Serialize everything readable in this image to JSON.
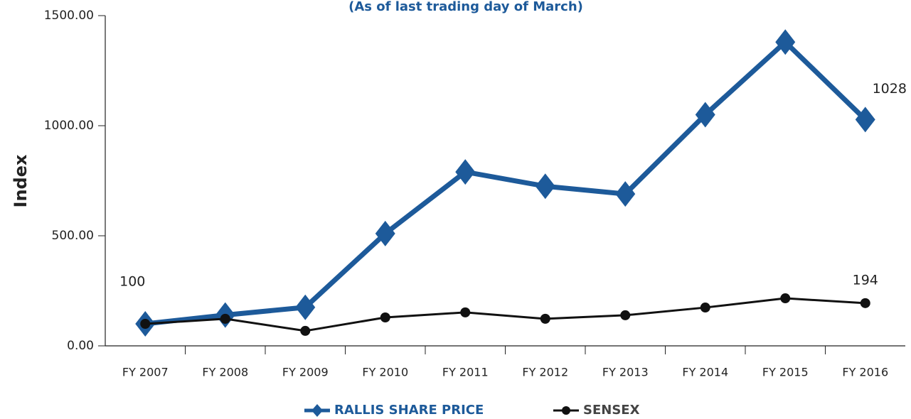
{
  "chart_data": {
    "type": "line",
    "subtitle": "(As of last trading day of March)",
    "y_label": "Index",
    "categories": [
      "FY 2007",
      "FY 2008",
      "FY 2009",
      "FY 2010",
      "FY 2011",
      "FY 2012",
      "FY 2013",
      "FY 2014",
      "FY 2015",
      "FY 2016"
    ],
    "series": [
      {
        "name": "RALLIS SHARE PRICE",
        "color": "#1d5a9a",
        "values": [
          100,
          140,
          175,
          510,
          790,
          725,
          690,
          1050,
          1380,
          1028
        ]
      },
      {
        "name": "SENSEX",
        "color": "#111111",
        "values": [
          100,
          123,
          68,
          129,
          152,
          123,
          139,
          174,
          216,
          194
        ]
      }
    ],
    "ylim": [
      0,
      1500
    ],
    "yticks": [
      {
        "value": 0,
        "label": "0.00"
      },
      {
        "value": 500,
        "label": "500.00"
      },
      {
        "value": 1000,
        "label": "1000.00"
      },
      {
        "value": 1500,
        "label": "1500.00"
      }
    ],
    "legend": "bottom"
  }
}
